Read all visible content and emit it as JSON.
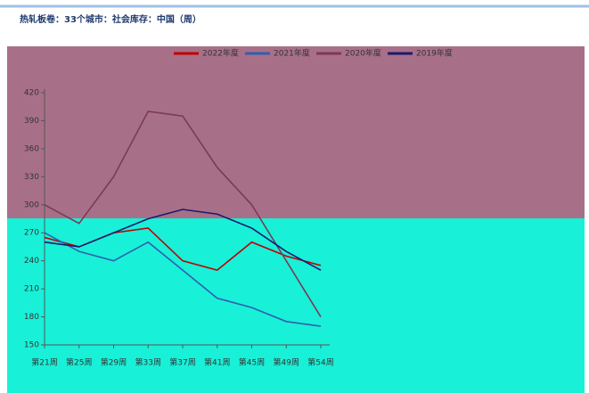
{
  "chart_data": {
    "type": "line",
    "title": "热轧板卷：33个城市：社会库存：中国（周）",
    "categories": [
      "第21周",
      "第25周",
      "第29周",
      "第33周",
      "第37周",
      "第41周",
      "第45周",
      "第49周",
      "第54周"
    ],
    "series": [
      {
        "name": "2022年度",
        "color": "#c00000",
        "values": [
          265,
          255,
          270,
          275,
          240,
          230,
          260,
          245,
          235
        ]
      },
      {
        "name": "2021年度",
        "color": "#2f5fb0",
        "values": [
          270,
          250,
          240,
          260,
          230,
          200,
          190,
          175,
          170
        ]
      },
      {
        "name": "2020年度",
        "color": "#7b3a55",
        "values": [
          300,
          280,
          330,
          400,
          395,
          340,
          300,
          240,
          180
        ]
      },
      {
        "name": "2019年度",
        "color": "#1a1a6e",
        "values": [
          260,
          255,
          270,
          285,
          295,
          290,
          275,
          250,
          230
        ]
      }
    ],
    "ylim": [
      150,
      420
    ],
    "yticks": [
      150,
      180,
      210,
      240,
      270,
      300,
      330,
      360,
      390,
      420
    ],
    "grid": false
  }
}
